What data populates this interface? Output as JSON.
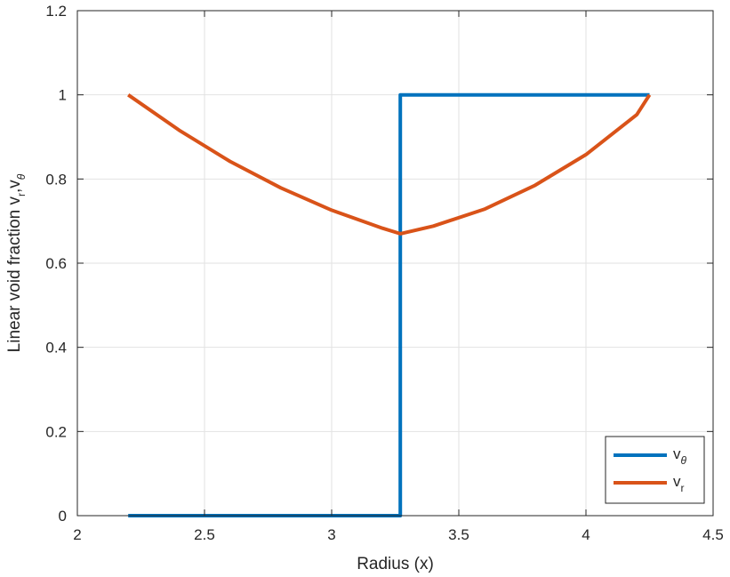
{
  "chart_data": {
    "type": "line",
    "xlabel": "Radius (x)",
    "ylabel": "Linear void fraction v",
    "ylabel_sub1": "r",
    "ylabel_mid": ",v",
    "ylabel_sub2": "θ",
    "xlim": [
      2,
      4.5
    ],
    "ylim": [
      0,
      1.2
    ],
    "xticks": [
      2,
      2.5,
      3,
      3.5,
      4,
      4.5
    ],
    "xtick_labels": [
      "2",
      "2.5",
      "3",
      "3.5",
      "4",
      "4.5"
    ],
    "yticks": [
      0,
      0.2,
      0.4,
      0.6,
      0.8,
      1,
      1.2
    ],
    "ytick_labels": [
      "0",
      "0.2",
      "0.4",
      "0.6",
      "0.8",
      "1",
      "1.2"
    ],
    "grid": true,
    "legend_position": "bottom-right",
    "series": [
      {
        "name": "v",
        "name_sub": "θ",
        "color": "#0072BD",
        "x": [
          2.2,
          3.27,
          3.27,
          4.25
        ],
        "y": [
          0,
          0,
          1,
          1
        ]
      },
      {
        "name": "v",
        "name_sub": "r",
        "color": "#D95319",
        "x": [
          2.2,
          2.4,
          2.6,
          2.8,
          3.0,
          3.2,
          3.27,
          3.4,
          3.6,
          3.8,
          4.0,
          4.2,
          4.25
        ],
        "y": [
          1.0,
          0.916,
          0.842,
          0.779,
          0.726,
          0.683,
          0.67,
          0.688,
          0.728,
          0.785,
          0.858,
          0.953,
          1.0
        ]
      }
    ]
  }
}
